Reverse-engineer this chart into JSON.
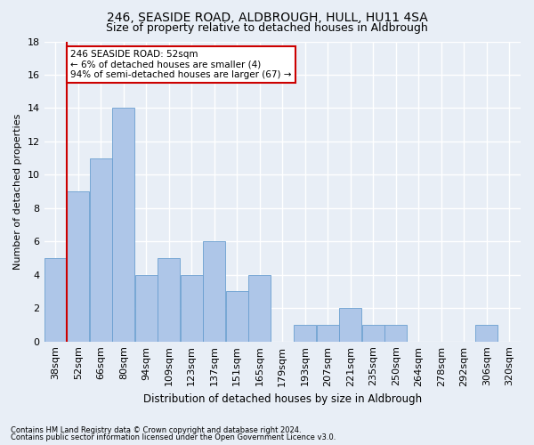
{
  "title": "246, SEASIDE ROAD, ALDBROUGH, HULL, HU11 4SA",
  "subtitle": "Size of property relative to detached houses in Aldbrough",
  "xlabel": "Distribution of detached houses by size in Aldbrough",
  "ylabel": "Number of detached properties",
  "categories": [
    "38sqm",
    "52sqm",
    "66sqm",
    "80sqm",
    "94sqm",
    "109sqm",
    "123sqm",
    "137sqm",
    "151sqm",
    "165sqm",
    "179sqm",
    "193sqm",
    "207sqm",
    "221sqm",
    "235sqm",
    "250sqm",
    "264sqm",
    "278sqm",
    "292sqm",
    "306sqm",
    "320sqm"
  ],
  "values": [
    5,
    9,
    11,
    14,
    4,
    5,
    4,
    6,
    3,
    4,
    0,
    1,
    1,
    2,
    1,
    1,
    0,
    0,
    0,
    1,
    0
  ],
  "bar_color": "#aec6e8",
  "bar_edge_color": "#6a9fd0",
  "vline_index": 1,
  "vline_color": "#cc0000",
  "ylim": [
    0,
    18
  ],
  "yticks": [
    0,
    2,
    4,
    6,
    8,
    10,
    12,
    14,
    16,
    18
  ],
  "annotation_text": "246 SEASIDE ROAD: 52sqm\n← 6% of detached houses are smaller (4)\n94% of semi-detached houses are larger (67) →",
  "annotation_box_edge_color": "#cc0000",
  "annotation_box_facecolor": "#ffffff",
  "footer_line1": "Contains HM Land Registry data © Crown copyright and database right 2024.",
  "footer_line2": "Contains public sector information licensed under the Open Government Licence v3.0.",
  "bg_color": "#e8eef6",
  "plot_bg_color": "#e8eef6",
  "grid_color": "#ffffff",
  "title_fontsize": 10,
  "subtitle_fontsize": 9,
  "xlabel_fontsize": 8.5,
  "ylabel_fontsize": 8,
  "tick_fontsize": 8,
  "annot_fontsize": 7.5
}
